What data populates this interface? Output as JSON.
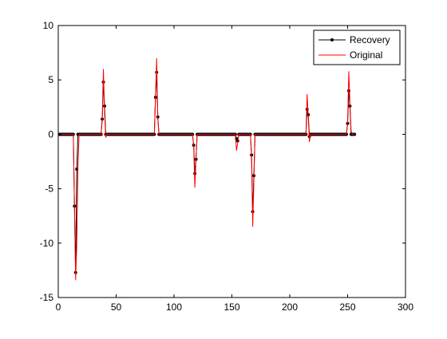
{
  "chart_data": {
    "type": "line",
    "title": "",
    "xlabel": "",
    "ylabel": "",
    "xlim": [
      0,
      300
    ],
    "ylim": [
      -15,
      10
    ],
    "xticks": [
      0,
      50,
      100,
      150,
      200,
      250,
      300
    ],
    "yticks": [
      -15,
      -10,
      -5,
      0,
      5,
      10
    ],
    "n_points": 256,
    "grid": false,
    "legend_position": "top-right",
    "series": [
      {
        "name": "Recovery",
        "color": "#000000",
        "marker": "dot",
        "spikes": [
          [
            14,
            -6.6
          ],
          [
            15,
            -12.7
          ],
          [
            16,
            -3.2
          ],
          [
            38,
            1.4
          ],
          [
            39,
            4.8
          ],
          [
            40,
            2.6
          ],
          [
            84,
            3.4
          ],
          [
            85,
            5.7
          ],
          [
            86,
            1.6
          ],
          [
            117,
            -1.0
          ],
          [
            118,
            -3.6
          ],
          [
            119,
            -2.3
          ],
          [
            154,
            -0.4
          ],
          [
            155,
            -0.6
          ],
          [
            167,
            -1.9
          ],
          [
            168,
            -7.1
          ],
          [
            169,
            -3.8
          ],
          [
            215,
            2.3
          ],
          [
            216,
            1.8
          ],
          [
            217,
            -0.2
          ],
          [
            250,
            1.0
          ],
          [
            251,
            4.0
          ],
          [
            252,
            2.6
          ]
        ]
      },
      {
        "name": "Original",
        "color": "#ff0000",
        "marker": "none",
        "spikes": [
          [
            14,
            -6.8
          ],
          [
            15,
            -13.4
          ],
          [
            16,
            -10.0
          ],
          [
            17,
            -3.0
          ],
          [
            38,
            1.6
          ],
          [
            39,
            6.0
          ],
          [
            40,
            2.0
          ],
          [
            41,
            -0.3
          ],
          [
            84,
            3.5
          ],
          [
            85,
            7.0
          ],
          [
            86,
            1.5
          ],
          [
            117,
            -1.1
          ],
          [
            118,
            -4.9
          ],
          [
            119,
            -2.2
          ],
          [
            154,
            -1.5
          ],
          [
            155,
            -0.8
          ],
          [
            167,
            -2.0
          ],
          [
            168,
            -8.5
          ],
          [
            169,
            -4.4
          ],
          [
            215,
            3.7
          ],
          [
            216,
            1.6
          ],
          [
            217,
            -0.7
          ],
          [
            250,
            1.1
          ],
          [
            251,
            5.8
          ],
          [
            252,
            2.8
          ],
          [
            253,
            0.3
          ]
        ]
      }
    ]
  }
}
